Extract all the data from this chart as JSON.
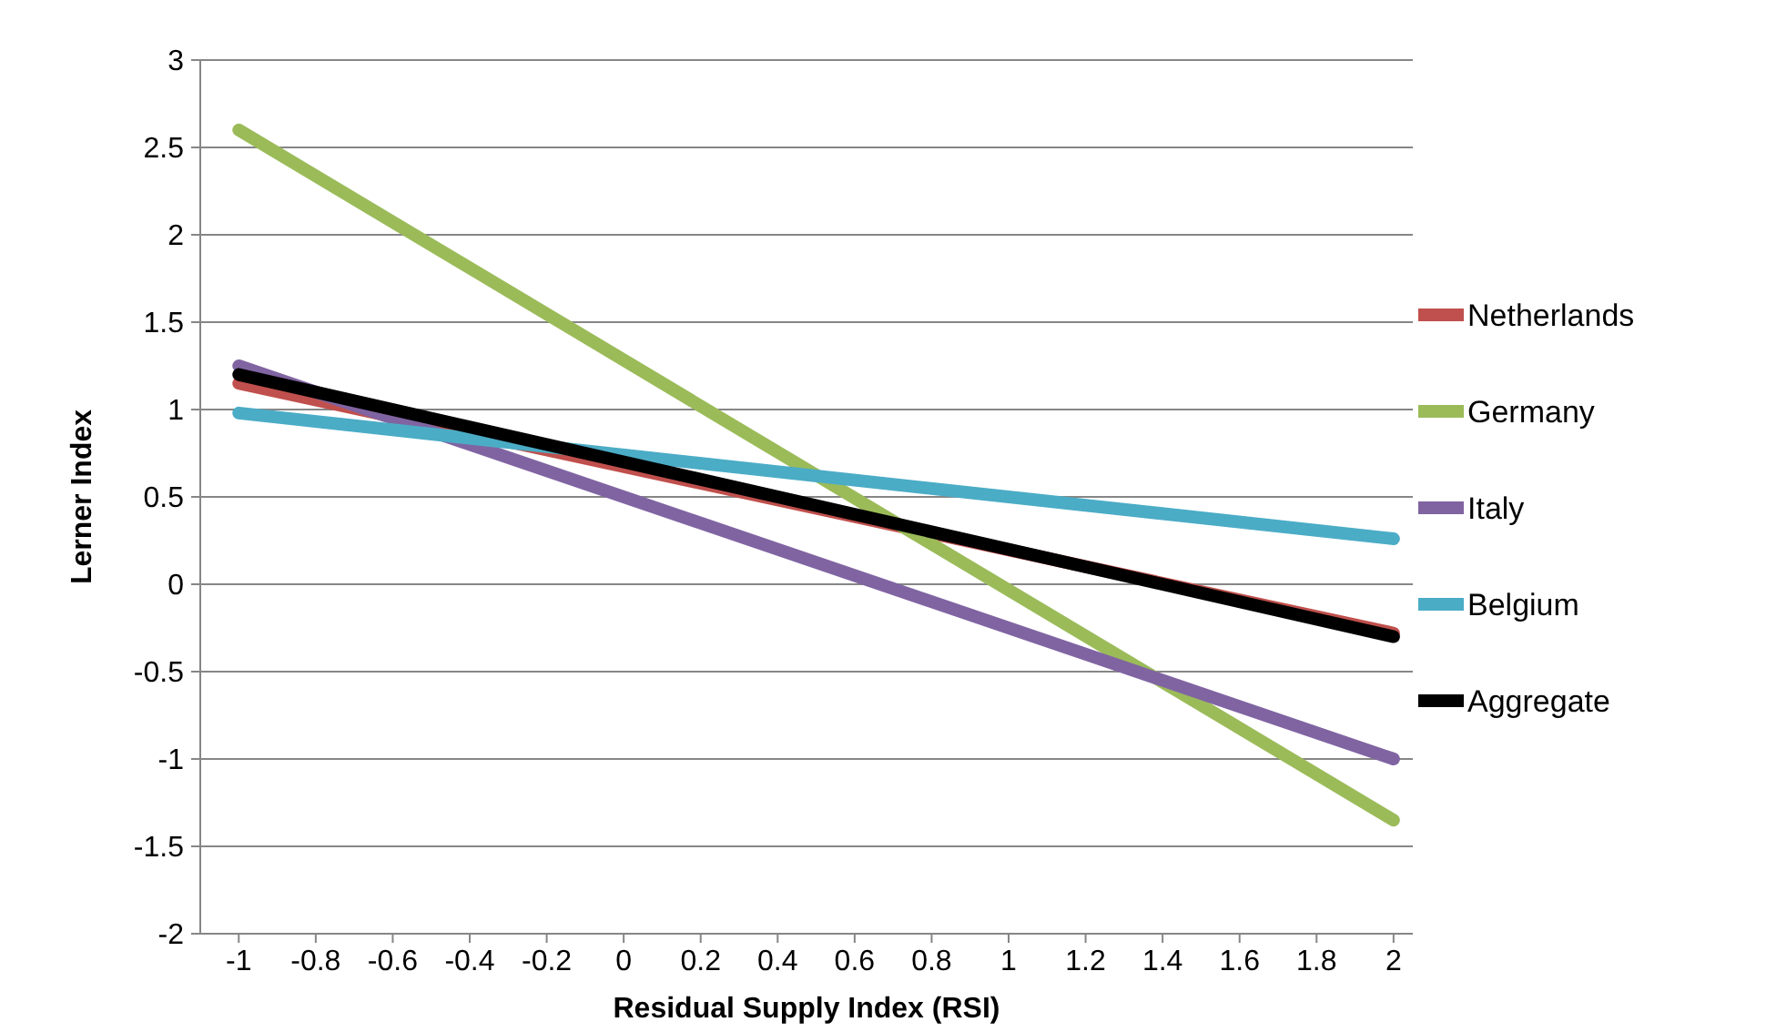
{
  "chart_data": {
    "type": "line",
    "xlabel": "Residual Supply Index (RSI)",
    "ylabel": "Lerner Index",
    "x": [
      -1,
      2
    ],
    "series": [
      {
        "name": "Netherlands",
        "color": "#c0504d",
        "values": [
          1.15,
          -0.28
        ]
      },
      {
        "name": "Germany",
        "color": "#9bbb59",
        "values": [
          2.6,
          -1.35
        ]
      },
      {
        "name": "Italy",
        "color": "#8064a2",
        "values": [
          1.25,
          -1.0
        ]
      },
      {
        "name": "Belgium",
        "color": "#4bacc6",
        "values": [
          0.98,
          0.26
        ]
      },
      {
        "name": "Aggregate",
        "color": "#000000",
        "values": [
          1.2,
          -0.3
        ]
      }
    ],
    "xlim": [
      -1.1,
      2.05
    ],
    "xticks": [
      -1,
      -0.8,
      -0.6,
      -0.4,
      -0.2,
      0,
      0.2,
      0.4,
      0.6,
      0.8,
      1,
      1.2,
      1.4,
      1.6,
      1.8,
      2
    ],
    "ylim": [
      -2,
      3
    ],
    "yticks": [
      -2,
      -1.5,
      -1,
      -0.5,
      0,
      0.5,
      1,
      1.5,
      2,
      2.5,
      3
    ],
    "grid": "y",
    "legend": "right",
    "marker": "none",
    "line_style": "solid"
  }
}
